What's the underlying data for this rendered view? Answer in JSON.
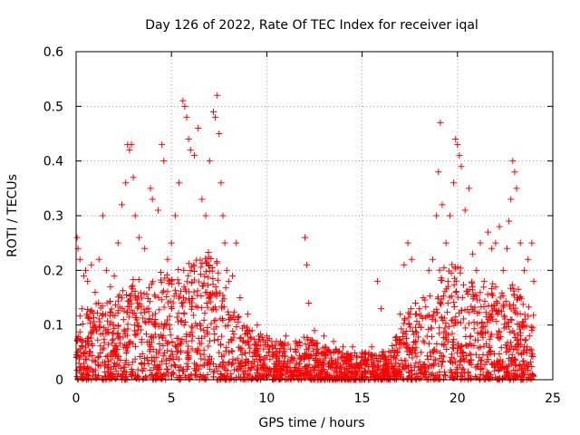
{
  "chart_data": {
    "type": "scatter",
    "title": "Day 126 of 2022, Rate Of TEC Index for receiver iqal",
    "xlabel": "GPS time / hours",
    "ylabel": "ROTI / TECUs",
    "xlim": [
      0,
      25
    ],
    "ylim": [
      0,
      0.6
    ],
    "x_ticks": [
      0,
      5,
      10,
      15,
      20,
      25
    ],
    "x_tick_labels": [
      "0",
      "5",
      "10",
      "15",
      "20",
      "25"
    ],
    "y_ticks": [
      0,
      0.1,
      0.2,
      0.3,
      0.4,
      0.5,
      0.6
    ],
    "y_tick_labels": [
      "0",
      "0.1",
      "0.2",
      "0.3",
      "0.4",
      "0.5",
      "0.6"
    ],
    "grid": true,
    "marker": "+",
    "color": "#ff0000",
    "series": [
      {
        "name": "ROTI",
        "points": [
          [
            0.05,
            0.26
          ],
          [
            0.1,
            0.24
          ],
          [
            0.2,
            0.22
          ],
          [
            0.3,
            0.13
          ],
          [
            0.4,
            0.19
          ],
          [
            0.5,
            0.2
          ],
          [
            0.6,
            0.18
          ],
          [
            0.8,
            0.21
          ],
          [
            1.0,
            0.16
          ],
          [
            1.2,
            0.22
          ],
          [
            1.4,
            0.3
          ],
          [
            1.6,
            0.2
          ],
          [
            1.8,
            0.17
          ],
          [
            2.0,
            0.19
          ],
          [
            2.2,
            0.25
          ],
          [
            2.4,
            0.32
          ],
          [
            2.6,
            0.36
          ],
          [
            2.7,
            0.43
          ],
          [
            2.8,
            0.42
          ],
          [
            2.9,
            0.43
          ],
          [
            3.0,
            0.37
          ],
          [
            3.1,
            0.3
          ],
          [
            3.3,
            0.26
          ],
          [
            3.6,
            0.24
          ],
          [
            3.9,
            0.35
          ],
          [
            4.0,
            0.33
          ],
          [
            4.3,
            0.31
          ],
          [
            4.5,
            0.43
          ],
          [
            4.6,
            0.4
          ],
          [
            4.8,
            0.22
          ],
          [
            5.0,
            0.25
          ],
          [
            5.2,
            0.3
          ],
          [
            5.4,
            0.36
          ],
          [
            5.6,
            0.51
          ],
          [
            5.7,
            0.5
          ],
          [
            5.8,
            0.48
          ],
          [
            5.9,
            0.44
          ],
          [
            6.0,
            0.42
          ],
          [
            6.2,
            0.41
          ],
          [
            6.4,
            0.46
          ],
          [
            6.6,
            0.33
          ],
          [
            6.8,
            0.3
          ],
          [
            7.0,
            0.4
          ],
          [
            7.2,
            0.49
          ],
          [
            7.3,
            0.48
          ],
          [
            7.4,
            0.52
          ],
          [
            7.5,
            0.45
          ],
          [
            7.6,
            0.36
          ],
          [
            7.7,
            0.3
          ],
          [
            7.8,
            0.25
          ],
          [
            7.9,
            0.2
          ],
          [
            8.0,
            0.18
          ],
          [
            8.2,
            0.19
          ],
          [
            8.4,
            0.25
          ],
          [
            8.6,
            0.15
          ],
          [
            9.0,
            0.12
          ],
          [
            9.5,
            0.1
          ],
          [
            10.0,
            0.08
          ],
          [
            10.5,
            0.07
          ],
          [
            11.0,
            0.08
          ],
          [
            11.5,
            0.07
          ],
          [
            12.0,
            0.26
          ],
          [
            12.1,
            0.21
          ],
          [
            12.2,
            0.14
          ],
          [
            12.5,
            0.09
          ],
          [
            13.0,
            0.08
          ],
          [
            13.5,
            0.07
          ],
          [
            14.0,
            0.06
          ],
          [
            14.5,
            0.06
          ],
          [
            15.0,
            0.05
          ],
          [
            15.5,
            0.06
          ],
          [
            15.8,
            0.18
          ],
          [
            16.0,
            0.13
          ],
          [
            16.5,
            0.05
          ],
          [
            17.0,
            0.12
          ],
          [
            17.2,
            0.21
          ],
          [
            17.4,
            0.25
          ],
          [
            17.6,
            0.22
          ],
          [
            17.8,
            0.14
          ],
          [
            18.0,
            0.13
          ],
          [
            18.2,
            0.15
          ],
          [
            18.5,
            0.2
          ],
          [
            18.7,
            0.22
          ],
          [
            18.9,
            0.3
          ],
          [
            19.0,
            0.38
          ],
          [
            19.1,
            0.47
          ],
          [
            19.2,
            0.32
          ],
          [
            19.4,
            0.25
          ],
          [
            19.6,
            0.3
          ],
          [
            19.8,
            0.36
          ],
          [
            19.9,
            0.44
          ],
          [
            20.0,
            0.43
          ],
          [
            20.1,
            0.41
          ],
          [
            20.2,
            0.39
          ],
          [
            20.4,
            0.31
          ],
          [
            20.6,
            0.35
          ],
          [
            20.8,
            0.23
          ],
          [
            21.0,
            0.2
          ],
          [
            21.2,
            0.25
          ],
          [
            21.4,
            0.18
          ],
          [
            21.6,
            0.27
          ],
          [
            21.8,
            0.24
          ],
          [
            22.0,
            0.25
          ],
          [
            22.2,
            0.28
          ],
          [
            22.4,
            0.2
          ],
          [
            22.6,
            0.24
          ],
          [
            22.7,
            0.29
          ],
          [
            22.8,
            0.33
          ],
          [
            22.9,
            0.4
          ],
          [
            23.0,
            0.38
          ],
          [
            23.1,
            0.35
          ],
          [
            23.3,
            0.25
          ],
          [
            23.5,
            0.2
          ],
          [
            23.7,
            0.22
          ],
          [
            23.9,
            0.25
          ],
          [
            24.0,
            0.18
          ]
        ],
        "density_envelope": {
          "description": "upper bound of the dense point cloud vs time (hours, TECU)",
          "x": [
            0,
            0.5,
            1,
            1.5,
            2,
            2.5,
            3,
            3.5,
            4,
            4.5,
            5,
            5.5,
            6,
            6.5,
            7,
            7.5,
            8,
            8.5,
            9,
            9.5,
            10,
            10.5,
            11,
            11.5,
            12,
            12.5,
            13,
            13.5,
            14,
            14.5,
            15,
            15.5,
            16,
            16.5,
            17,
            17.5,
            18,
            18.5,
            19,
            19.5,
            20,
            20.5,
            21,
            21.5,
            22,
            22.5,
            23,
            23.5,
            24
          ],
          "y": [
            0.14,
            0.15,
            0.14,
            0.15,
            0.15,
            0.17,
            0.19,
            0.18,
            0.18,
            0.2,
            0.19,
            0.21,
            0.22,
            0.22,
            0.24,
            0.23,
            0.15,
            0.12,
            0.1,
            0.09,
            0.08,
            0.07,
            0.07,
            0.07,
            0.08,
            0.07,
            0.06,
            0.06,
            0.05,
            0.05,
            0.05,
            0.05,
            0.05,
            0.06,
            0.1,
            0.13,
            0.13,
            0.16,
            0.2,
            0.21,
            0.22,
            0.19,
            0.17,
            0.17,
            0.18,
            0.17,
            0.18,
            0.15,
            0.13
          ]
        }
      }
    ]
  }
}
